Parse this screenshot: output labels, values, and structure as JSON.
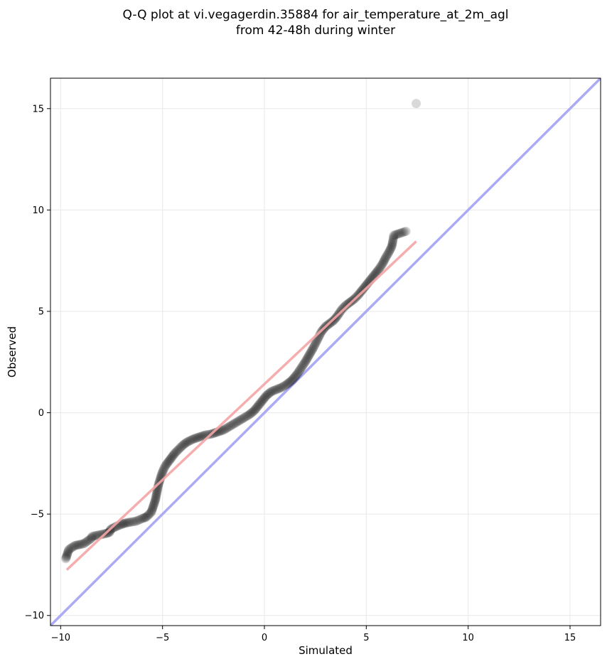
{
  "chart_data": {
    "type": "scatter",
    "title_line1": "Q-Q plot at vi.vegagerdin.35884 for air_temperature_at_2m_agl",
    "title_line2": "from 42-48h during winter",
    "xlabel": "Simulated",
    "ylabel": "Observed",
    "xlim": [
      -10.5,
      16.5
    ],
    "ylim": [
      -10.5,
      16.5
    ],
    "xticks": [
      {
        "v": -10,
        "label": "−10"
      },
      {
        "v": -5,
        "label": "−5"
      },
      {
        "v": 0,
        "label": "0"
      },
      {
        "v": 5,
        "label": "5"
      },
      {
        "v": 10,
        "label": "10"
      },
      {
        "v": 15,
        "label": "15"
      }
    ],
    "yticks": [
      {
        "v": -10,
        "label": "−10"
      },
      {
        "v": -5,
        "label": "−5"
      },
      {
        "v": 0,
        "label": "0"
      },
      {
        "v": 5,
        "label": "5"
      },
      {
        "v": 10,
        "label": "10"
      },
      {
        "v": 15,
        "label": "15"
      }
    ],
    "grid": true,
    "identity_line": {
      "from": [
        -10.5,
        -10.5
      ],
      "to": [
        16.5,
        16.5
      ],
      "color": "#aaaaf5"
    },
    "fit_line": {
      "from": [
        -9.7,
        -7.75
      ],
      "to": [
        7.45,
        8.45
      ],
      "color": "#f5a5a5"
    },
    "point_color": "#000000",
    "points": [
      [
        -9.75,
        -7.2
      ],
      [
        -9.7,
        -7.05
      ],
      [
        -9.6,
        -6.75
      ],
      [
        -9.3,
        -6.55
      ],
      [
        -9.05,
        -6.5
      ],
      [
        -8.85,
        -6.45
      ],
      [
        -8.5,
        -6.2
      ],
      [
        -8.45,
        -6.1
      ],
      [
        -7.75,
        -5.95
      ],
      [
        -7.6,
        -5.9
      ],
      [
        -7.55,
        -5.75
      ],
      [
        -7.25,
        -5.6
      ],
      [
        -7.0,
        -5.5
      ],
      [
        -6.85,
        -5.45
      ],
      [
        -6.6,
        -5.4
      ],
      [
        -6.3,
        -5.35
      ],
      [
        -5.95,
        -5.2
      ],
      [
        -5.8,
        -5.15
      ],
      [
        -5.55,
        -4.9
      ],
      [
        -5.45,
        -4.6
      ],
      [
        -5.35,
        -4.3
      ],
      [
        -5.3,
        -4.05
      ],
      [
        -5.25,
        -3.8
      ],
      [
        -5.2,
        -3.55
      ],
      [
        -5.12,
        -3.3
      ],
      [
        -5.05,
        -3.05
      ],
      [
        -4.95,
        -2.8
      ],
      [
        -4.85,
        -2.6
      ],
      [
        -4.7,
        -2.4
      ],
      [
        -4.55,
        -2.2
      ],
      [
        -4.4,
        -2.0
      ],
      [
        -4.2,
        -1.8
      ],
      [
        -4.0,
        -1.6
      ],
      [
        -3.8,
        -1.45
      ],
      [
        -3.5,
        -1.3
      ],
      [
        -3.2,
        -1.2
      ],
      [
        -2.9,
        -1.1
      ],
      [
        -2.6,
        -1.05
      ],
      [
        -2.3,
        -0.95
      ],
      [
        -2.0,
        -0.85
      ],
      [
        -1.75,
        -0.7
      ],
      [
        -1.5,
        -0.55
      ],
      [
        -1.25,
        -0.4
      ],
      [
        -1.0,
        -0.25
      ],
      [
        -0.75,
        -0.1
      ],
      [
        -0.5,
        0.1
      ],
      [
        -0.3,
        0.35
      ],
      [
        -0.1,
        0.6
      ],
      [
        0.1,
        0.85
      ],
      [
        0.35,
        1.05
      ],
      [
        0.6,
        1.15
      ],
      [
        0.85,
        1.25
      ],
      [
        1.1,
        1.4
      ],
      [
        1.35,
        1.6
      ],
      [
        1.6,
        1.9
      ],
      [
        1.8,
        2.2
      ],
      [
        2.0,
        2.5
      ],
      [
        2.2,
        2.85
      ],
      [
        2.4,
        3.2
      ],
      [
        2.6,
        3.6
      ],
      [
        2.8,
        4.0
      ],
      [
        3.0,
        4.25
      ],
      [
        3.2,
        4.4
      ],
      [
        3.4,
        4.55
      ],
      [
        3.6,
        4.8
      ],
      [
        3.8,
        5.1
      ],
      [
        4.0,
        5.3
      ],
      [
        4.2,
        5.45
      ],
      [
        4.4,
        5.6
      ],
      [
        4.6,
        5.8
      ],
      [
        4.8,
        6.05
      ],
      [
        5.0,
        6.3
      ],
      [
        5.2,
        6.55
      ],
      [
        5.4,
        6.8
      ],
      [
        5.6,
        7.05
      ],
      [
        5.8,
        7.35
      ],
      [
        5.95,
        7.65
      ],
      [
        6.1,
        7.9
      ],
      [
        6.25,
        8.2
      ],
      [
        6.3,
        8.45
      ],
      [
        6.35,
        8.75
      ],
      [
        6.95,
        8.95
      ],
      [
        7.45,
        15.25
      ]
    ]
  }
}
